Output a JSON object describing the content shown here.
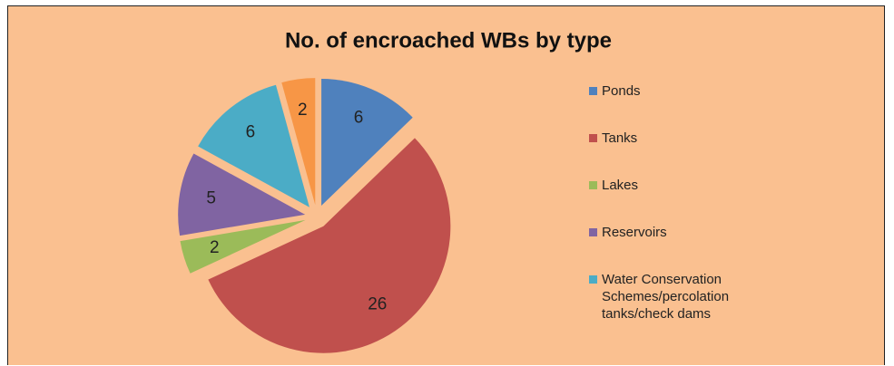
{
  "chart_data": {
    "type": "pie",
    "title": "No. of encroached WBs by type",
    "categories": [
      "Ponds",
      "Tanks",
      "Lakes",
      "Reservoirs",
      "Water Conservation Schemes/percolation tanks/check dams",
      null
    ],
    "values": [
      6,
      26,
      2,
      5,
      6,
      2
    ],
    "colors": [
      "#4f81bd",
      "#c0504d",
      "#9bbb59",
      "#8064a2",
      "#4bacc6",
      "#f79646"
    ],
    "legend": "right"
  }
}
